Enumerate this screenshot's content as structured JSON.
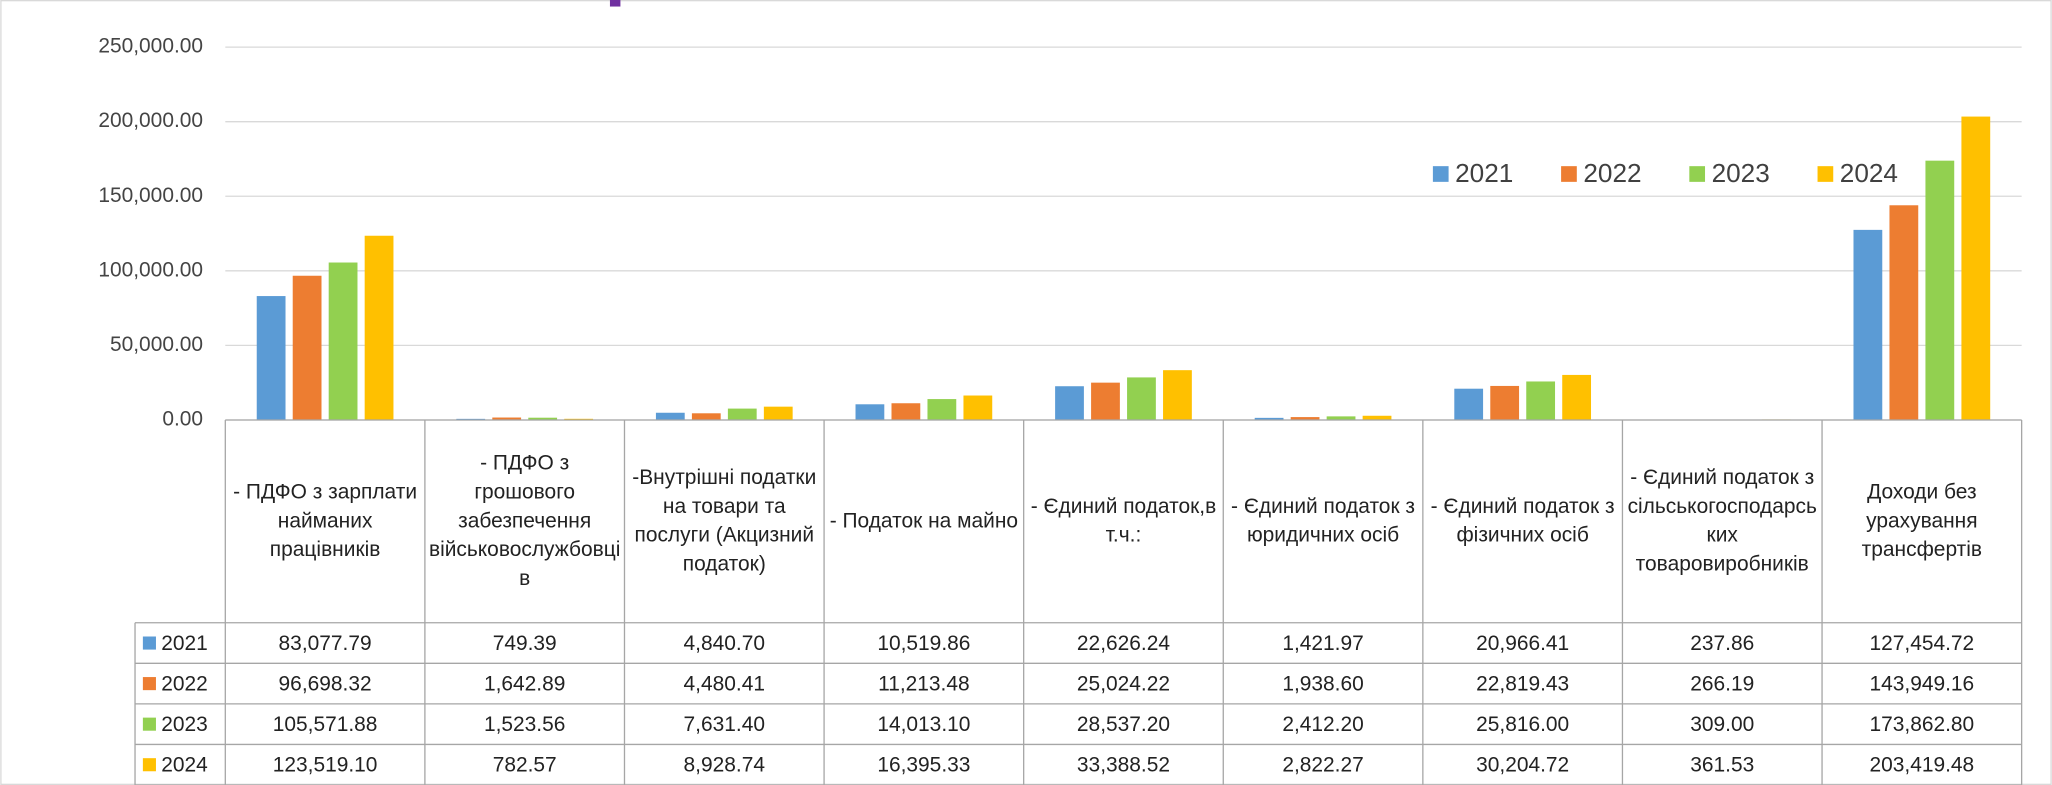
{
  "chart_data": {
    "type": "bar",
    "categories": [
      "- ПДФО з зарплати найманих працівників",
      "- ПДФО з грошового забезпечення військовослужбовців",
      "-Внутрішні податки на товари та послуги (Акцизний податок)",
      "- Податок на майно",
      "- Єдиний податок,в т.ч.:",
      "- Єдиний податок з юридичних осіб",
      "- Єдиний податок з фізичних осіб",
      "- Єдиний податок з сільськогосподарських товаровиробників",
      "Доходи без урахування трансфертів"
    ],
    "series": [
      {
        "name": "2021",
        "color": "#5b9bd5",
        "values": [
          83077.79,
          749.39,
          4840.7,
          10519.86,
          22626.24,
          1421.97,
          20966.41,
          237.86,
          127454.72
        ],
        "value_labels": [
          "83,077.79",
          "749.39",
          "4,840.70",
          "10,519.86",
          "22,626.24",
          "1,421.97",
          "20,966.41",
          "237.86",
          "127,454.72"
        ]
      },
      {
        "name": "2022",
        "color": "#ed7d31",
        "values": [
          96698.32,
          1642.89,
          4480.41,
          11213.48,
          25024.22,
          1938.6,
          22819.43,
          266.19,
          143949.16
        ],
        "value_labels": [
          "96,698.32",
          "1,642.89",
          "4,480.41",
          "11,213.48",
          "25,024.22",
          "1,938.60",
          "22,819.43",
          "266.19",
          "143,949.16"
        ]
      },
      {
        "name": "2023",
        "color": "#92d050",
        "values": [
          105571.88,
          1523.56,
          7631.4,
          14013.1,
          28537.2,
          2412.2,
          25816.0,
          309.0,
          173862.8
        ],
        "value_labels": [
          "105,571.88",
          "1,523.56",
          "7,631.40",
          "14,013.10",
          "28,537.20",
          "2,412.20",
          "25,816.00",
          "309.00",
          "173,862.80"
        ]
      },
      {
        "name": "2024",
        "color": "#ffc000",
        "values": [
          123519.1,
          782.57,
          8928.74,
          16395.33,
          33388.52,
          2822.27,
          30204.72,
          361.53,
          203419.48
        ],
        "value_labels": [
          "123,519.10",
          "782.57",
          "8,928.74",
          "16,395.33",
          "33,388.52",
          "2,822.27",
          "30,204.72",
          "361.53",
          "203,419.48"
        ]
      }
    ],
    "ylim": [
      0,
      250000
    ],
    "yticks": [
      {
        "value": 0,
        "label": "0.00"
      },
      {
        "value": 50000,
        "label": "50,000.00"
      },
      {
        "value": 100000,
        "label": "100,000.00"
      },
      {
        "value": 150000,
        "label": "150,000.00"
      },
      {
        "value": 200000,
        "label": "200,000.00"
      },
      {
        "value": 250000,
        "label": "250,000.00"
      }
    ],
    "grid": true,
    "legend": "top-right"
  }
}
